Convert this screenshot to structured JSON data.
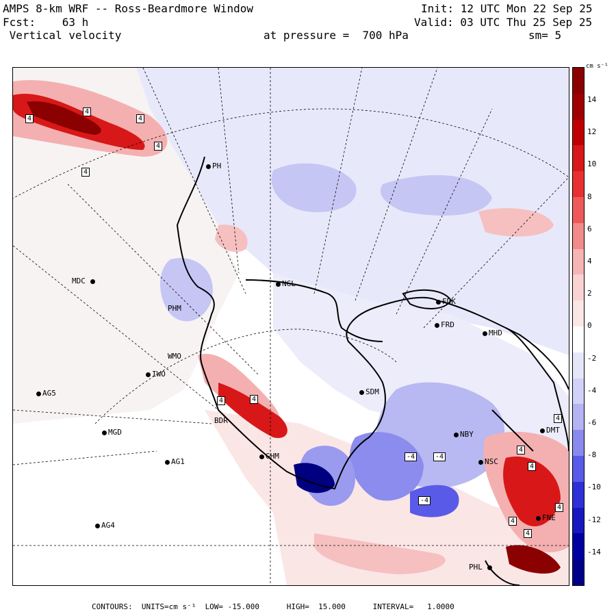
{
  "header": {
    "line1_left": "AMPS 8-km WRF -- Ross-Beardmore Window",
    "line2_left": "Fcst:    63 h",
    "line3_left": " Vertical velocity",
    "line1_right": "Init: 12 UTC Mon 22 Sep 25",
    "line2_right": "Valid: 03 UTC Thu 25 Sep 25",
    "pressure": "at pressure =  700 hPa",
    "smoothing": "sm= 5"
  },
  "colorbar": {
    "units": "cm s⁻¹",
    "labels": [
      "14",
      "12",
      "10",
      "8",
      "6",
      "4",
      "2",
      "0",
      "-2",
      "-4",
      "-6",
      "-8",
      "-10",
      "-12",
      "-14"
    ],
    "colors": [
      "#8b0000",
      "#a00000",
      "#c00000",
      "#d81818",
      "#e83030",
      "#ee5a5a",
      "#f28a8a",
      "#f6b4b4",
      "#f9d2d2",
      "#fbe6e6",
      "#ffffff",
      "#e6e6fb",
      "#d2d2f8",
      "#b4b4f2",
      "#8a8aee",
      "#5a5ae8",
      "#3030d8",
      "#1818c0",
      "#0000a0",
      "#00008b"
    ]
  },
  "stations": [
    {
      "code": "PH",
      "name": "station-ph"
    },
    {
      "code": "MDC",
      "name": "station-mdc"
    },
    {
      "code": "NGL",
      "name": "station-ngl"
    },
    {
      "code": "FDK",
      "name": "station-fdk"
    },
    {
      "code": "FRD",
      "name": "station-frd"
    },
    {
      "code": "MHD",
      "name": "station-mhd"
    },
    {
      "code": "PHM",
      "name": "station-phm"
    },
    {
      "code": "WMO",
      "name": "station-wmo"
    },
    {
      "code": "IWO",
      "name": "station-iwo"
    },
    {
      "code": "AG5",
      "name": "station-ag5"
    },
    {
      "code": "SDM",
      "name": "station-sdm"
    },
    {
      "code": "BDR",
      "name": "station-bdr"
    },
    {
      "code": "MGD",
      "name": "station-mgd"
    },
    {
      "code": "GHM",
      "name": "station-ghm"
    },
    {
      "code": "AG1",
      "name": "station-ag1"
    },
    {
      "code": "NBY",
      "name": "station-nby"
    },
    {
      "code": "NSC",
      "name": "station-nsc"
    },
    {
      "code": "AG4",
      "name": "station-ag4"
    },
    {
      "code": "DMT",
      "name": "station-dmt"
    },
    {
      "code": "PHL",
      "name": "station-phl"
    },
    {
      "code": "FNE",
      "name": "station-fne"
    }
  ],
  "contour_labels": [
    "4",
    "4",
    "4",
    "4",
    "4",
    "-4",
    "-4",
    "-4",
    "4",
    "4",
    "4",
    "4",
    "4",
    "4",
    "4",
    "4"
  ],
  "footer": {
    "text": "CONTOURS:  UNITS=cm s⁻¹  LOW= -15.000      HIGH=  15.000      INTERVAL=   1.0000"
  }
}
